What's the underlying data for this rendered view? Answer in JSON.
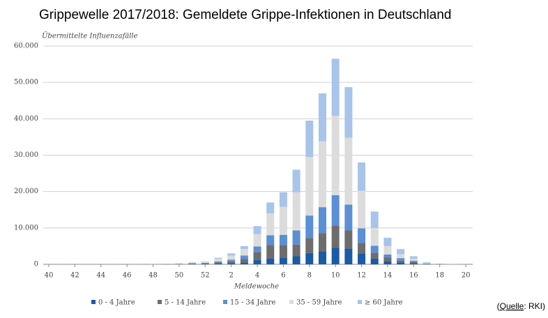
{
  "chart_data": {
    "type": "bar",
    "stacked": true,
    "title": "Grippewelle 2017/2018: Gemeldete Grippe-Infektionen in Deutschland",
    "y_label": "Übermittelte Influenzafälle",
    "x_label": "Meldewoche",
    "source": {
      "open": "(",
      "link": "Quelle",
      "rest": ": RKI)"
    },
    "categories": [
      "40",
      null,
      "42",
      null,
      "44",
      null,
      "46",
      null,
      "48",
      null,
      "50",
      null,
      "52",
      null,
      "2",
      null,
      "4",
      null,
      "6",
      null,
      "8",
      null,
      "10",
      null,
      "12",
      null,
      "14",
      null,
      "16",
      null,
      "18",
      null,
      "20"
    ],
    "series": [
      {
        "name": "0 - 4 Jahre",
        "color": "#1a5aa8",
        "values": [
          5,
          5,
          5,
          5,
          5,
          5,
          5,
          5,
          10,
          20,
          40,
          80,
          100,
          200,
          300,
          500,
          1200,
          1600,
          1800,
          2200,
          3100,
          3600,
          4500,
          4300,
          3000,
          1600,
          900,
          500,
          300,
          50,
          20,
          10,
          5
        ]
      },
      {
        "name": "5 - 14 Jahre",
        "color": "#6d6d6d",
        "values": [
          5,
          5,
          5,
          5,
          5,
          5,
          5,
          5,
          20,
          30,
          50,
          100,
          150,
          300,
          500,
          1000,
          2200,
          3700,
          3500,
          3200,
          4100,
          5000,
          6200,
          5000,
          2900,
          1600,
          1000,
          500,
          300,
          50,
          20,
          10,
          5
        ]
      },
      {
        "name": "15 - 34 Jahre",
        "color": "#5b8fd6",
        "values": [
          5,
          5,
          5,
          5,
          5,
          5,
          5,
          5,
          20,
          30,
          50,
          100,
          150,
          300,
          500,
          900,
          1500,
          2700,
          2800,
          3900,
          6200,
          7100,
          8300,
          7100,
          4000,
          1900,
          800,
          700,
          400,
          100,
          40,
          20,
          10
        ]
      },
      {
        "name": "35 - 59 Jahre",
        "color": "#dcdcdc",
        "values": [
          10,
          10,
          10,
          10,
          10,
          10,
          10,
          10,
          40,
          60,
          120,
          250,
          300,
          700,
          1100,
          1800,
          3400,
          6000,
          7700,
          10500,
          16100,
          18100,
          21800,
          18400,
          10300,
          4900,
          2300,
          1100,
          500,
          200,
          60,
          30,
          15
        ]
      },
      {
        "name": "≥ 60 Jahre",
        "color": "#a8c4ea",
        "values": [
          5,
          5,
          5,
          5,
          5,
          5,
          5,
          5,
          10,
          20,
          40,
          70,
          100,
          300,
          600,
          800,
          2200,
          3000,
          4000,
          6200,
          10000,
          13200,
          15700,
          13900,
          7800,
          4500,
          2300,
          1400,
          700,
          200,
          60,
          30,
          15
        ]
      }
    ],
    "ylim": [
      0,
      60000
    ],
    "yticks": [
      0,
      {
        "value": 10000,
        "label": "10.000"
      },
      {
        "value": 20000,
        "label": "20.000"
      },
      {
        "value": 30000,
        "label": "30.000"
      },
      {
        "value": 40000,
        "label": "40.000"
      },
      {
        "value": 50000,
        "label": "50.000"
      },
      {
        "value": 60000,
        "label": "60.000"
      }
    ],
    "grid": true
  }
}
